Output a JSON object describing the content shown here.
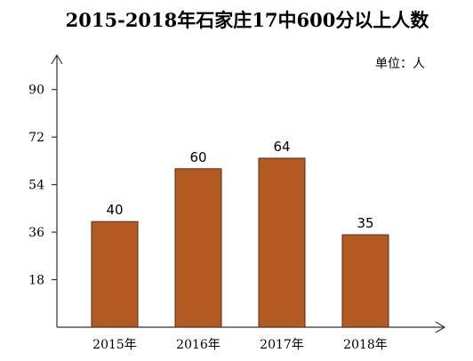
{
  "chart_data": {
    "type": "bar",
    "title": "2015-2018年石家庄17中600分以上人数",
    "unit_label": "单位：人",
    "categories": [
      "2015年",
      "2016年",
      "2017年",
      "2018年"
    ],
    "values": [
      40,
      60,
      64,
      35
    ],
    "yticks": [
      18,
      36,
      54,
      72,
      90
    ],
    "ylim": [
      0,
      100
    ],
    "bar_color": "#b35a23",
    "bar_outline": "#5a2a0c",
    "grid": false,
    "legend": "none"
  }
}
